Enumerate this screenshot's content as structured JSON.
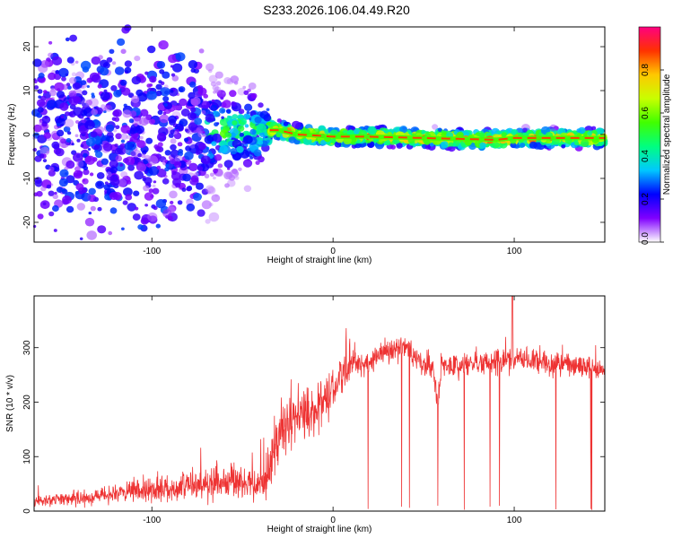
{
  "title": "S233.2026.106.04.49.R20",
  "colorbar": {
    "label": "Normalized spectral amplitude",
    "range": [
      0.0,
      1.0
    ],
    "ticks": [
      "0.0",
      "0.2",
      "0.4",
      "0.6",
      "0.8"
    ],
    "tick_values": [
      0.0,
      0.2,
      0.4,
      0.6,
      0.8
    ],
    "colormap": [
      "#ffffff",
      "#8000ff",
      "#0000ff",
      "#00c8ff",
      "#00ff80",
      "#40ff00",
      "#c8ff00",
      "#ffc800",
      "#ff3200",
      "#ff0080"
    ]
  },
  "chart_data": [
    {
      "type": "heatmap",
      "xlabel": "Height of straight line (km)",
      "ylabel": "Frequency (Hz)",
      "xlim": [
        -165,
        150
      ],
      "ylim": [
        -24.5,
        24.5
      ],
      "x_ticks": [
        "-100",
        "0",
        "100"
      ],
      "x_tick_values": [
        -100,
        0,
        100
      ],
      "y_ticks": [
        "20",
        "10",
        "0",
        "-10",
        "-20"
      ],
      "y_tick_values": [
        20,
        10,
        0,
        -10,
        -20
      ],
      "grid": false,
      "ridge": {
        "description_x": [
          -165,
          -120,
          -80,
          -50,
          -30,
          -20,
          -10,
          0,
          20,
          50,
          90,
          100,
          150
        ],
        "frequency_hz": [
          0,
          0,
          0,
          1,
          1,
          0,
          -0.2,
          -0.5,
          -0.5,
          -0.8,
          -1.2,
          -0.8,
          -0.8
        ]
      }
    },
    {
      "type": "line",
      "xlabel": "Height of straight line (km)",
      "ylabel": "SNR (10 * v/v)",
      "xlim": [
        -165,
        150
      ],
      "ylim": [
        0,
        395
      ],
      "x_ticks": [
        "-100",
        "0",
        "100"
      ],
      "x_tick_values": [
        -100,
        0,
        100
      ],
      "y_ticks": [
        "0",
        "100",
        "200",
        "300"
      ],
      "y_tick_values": [
        0,
        100,
        200,
        300
      ],
      "color": "#ee3333",
      "grid": false,
      "envelope": {
        "x": [
          -165,
          -150,
          -140,
          -120,
          -100,
          -80,
          -60,
          -45,
          -38,
          -33,
          -28,
          -20,
          -10,
          0,
          5,
          10,
          15,
          20,
          25,
          30,
          35,
          40,
          45,
          50,
          55,
          58,
          60,
          65,
          75,
          90,
          100,
          110,
          125,
          140,
          150
        ],
        "y": [
          18,
          22,
          24,
          30,
          40,
          45,
          55,
          52,
          40,
          110,
          150,
          175,
          180,
          220,
          245,
          275,
          270,
          270,
          290,
          295,
          300,
          300,
          285,
          270,
          260,
          200,
          270,
          265,
          270,
          275,
          280,
          275,
          270,
          265,
          260
        ]
      },
      "max_value": 395,
      "max_at_x": 99
    }
  ]
}
